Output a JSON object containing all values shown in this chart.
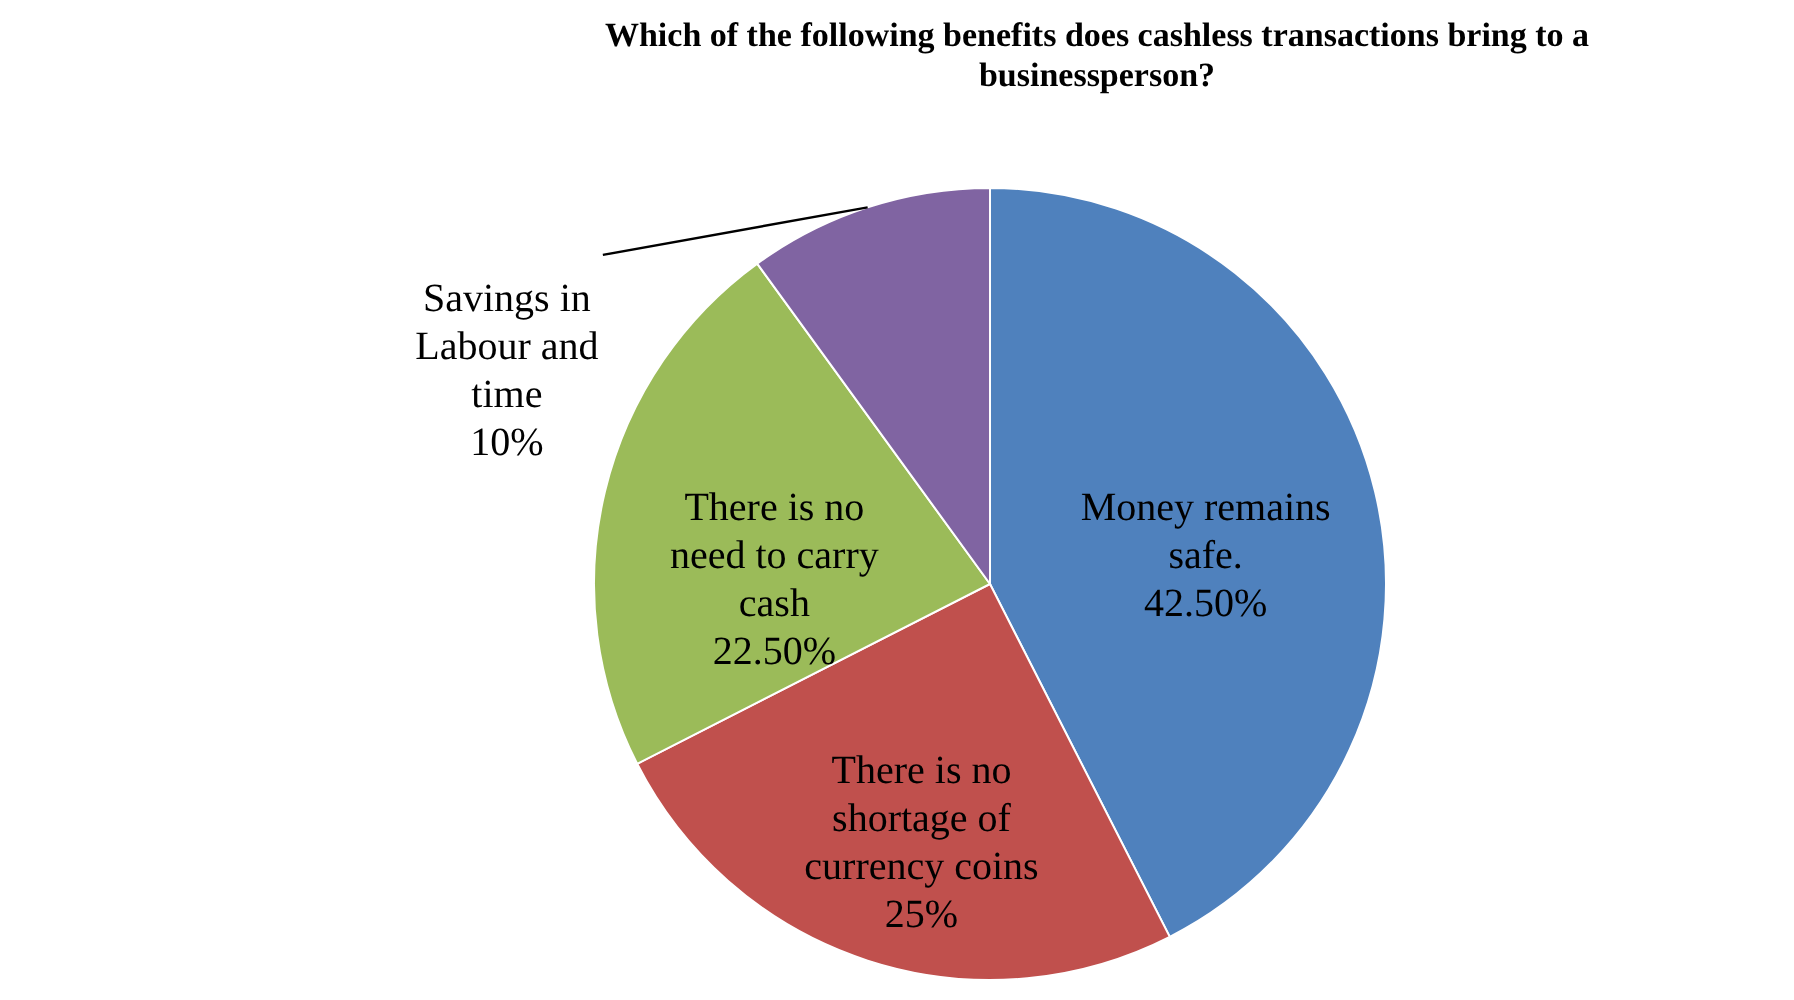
{
  "chart_data": {
    "type": "pie",
    "title": "Which of the following benefits does cashless transactions bring to a businessperson?",
    "categories": [
      "Money remains safe.",
      "There is no shortage of currency coins",
      "There is no need to carry cash",
      "Savings in Labour and time"
    ],
    "values": [
      42.5,
      25,
      22.5,
      10
    ],
    "value_labels": [
      "42.50%",
      "25%",
      "22.50%",
      "10%"
    ],
    "colors": [
      "#4f81bd",
      "#c0504d",
      "#9bbb59",
      "#8064a2"
    ]
  }
}
